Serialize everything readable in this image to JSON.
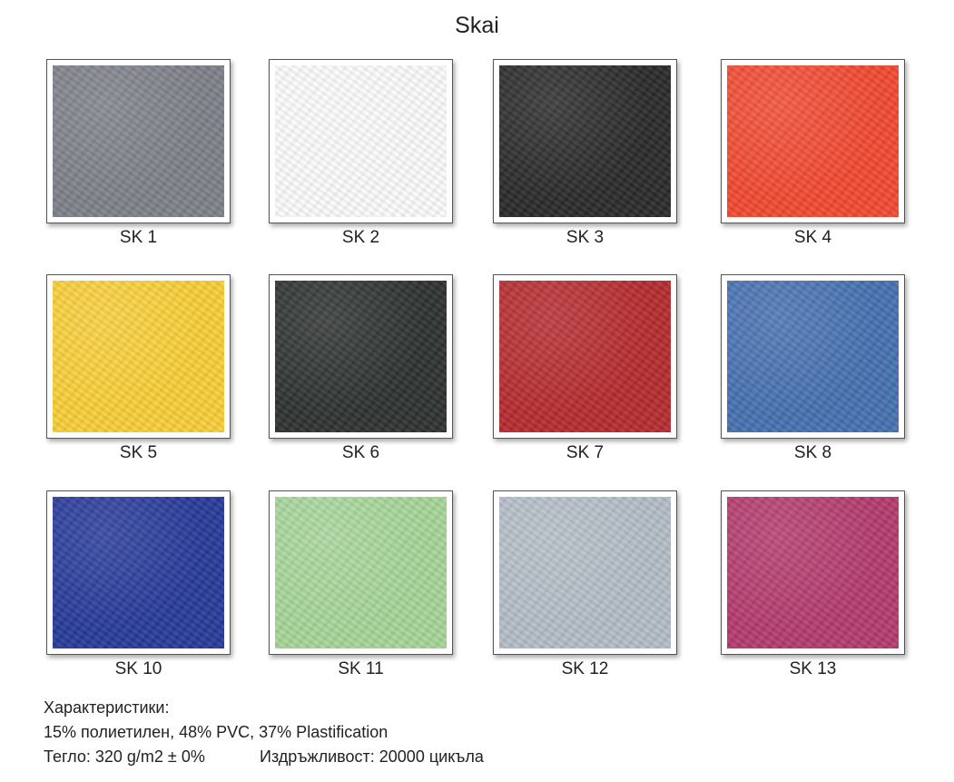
{
  "header": {
    "title": "Skai"
  },
  "swatches": [
    {
      "label": "SK 1",
      "color": "#7e8189"
    },
    {
      "label": "SK 2",
      "color": "#fbfbfb"
    },
    {
      "label": "SK 3",
      "color": "#2b2b2b"
    },
    {
      "label": "SK 4",
      "color": "#f24a32"
    },
    {
      "label": "SK 5",
      "color": "#f9cf38"
    },
    {
      "label": "SK 6",
      "color": "#2e3230"
    },
    {
      "label": "SK 7",
      "color": "#b62c2f"
    },
    {
      "label": "SK 8",
      "color": "#4771b1"
    },
    {
      "label": "SK 10",
      "color": "#283a9a"
    },
    {
      "label": "SK 11",
      "color": "#a7d699"
    },
    {
      "label": "SK 12",
      "color": "#b4bdc7"
    },
    {
      "label": "SK 13",
      "color": "#b43b6e"
    }
  ],
  "footer": {
    "heading": "Характеристики:",
    "composition": "15% полиетилен, 48% PVC, 37% Plastification",
    "weight": "Тегло: 320 g/m2 ± 0%",
    "durability": "Издръжливост: 20000 цикъла"
  }
}
